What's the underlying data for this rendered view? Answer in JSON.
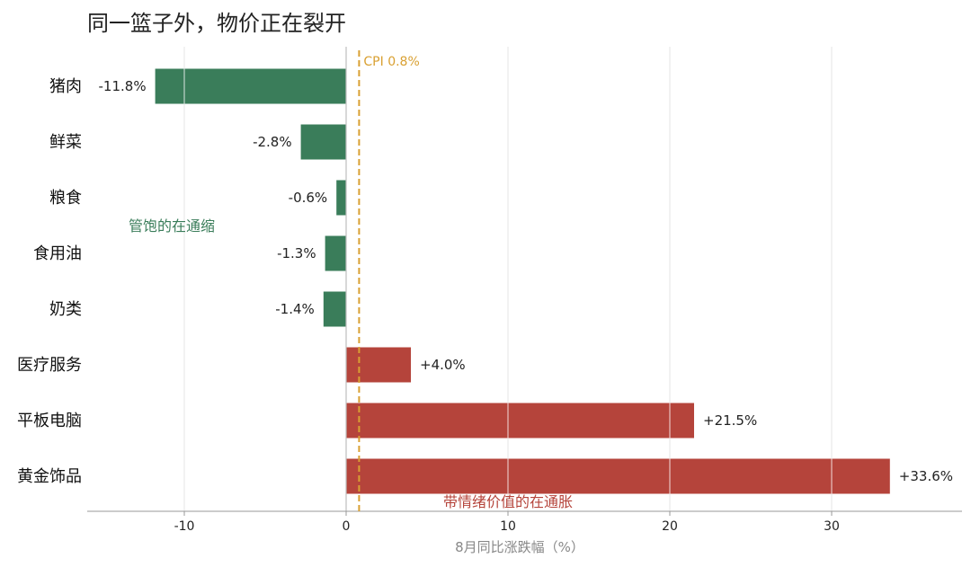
{
  "title": "同一篮子外，物价正在裂开",
  "colors": {
    "negative": "#3a7d5a",
    "positive": "#b5443b",
    "reference": "#d9a032",
    "grid": "#e6e6e6"
  },
  "chart_data": {
    "type": "bar",
    "orientation": "horizontal",
    "title": "同一篮子外，物价正在裂开",
    "xlabel": "8月同比涨跌幅（%）",
    "ylabel": "",
    "xlim": [
      -16,
      38
    ],
    "xticks": [
      -10,
      0,
      10,
      20,
      30
    ],
    "xtick_labels": [
      "-10",
      "0",
      "10",
      "20",
      "30"
    ],
    "grid": "x",
    "categories": [
      "猪肉",
      "鲜菜",
      "粮食",
      "食用油",
      "奶类",
      "医疗服务",
      "平板电脑",
      "黄金饰品"
    ],
    "values": [
      -11.8,
      -2.8,
      -0.6,
      -1.3,
      -1.4,
      4.0,
      21.5,
      33.6
    ],
    "value_labels": [
      "-11.8%",
      "-2.8%",
      "-0.6%",
      "-1.3%",
      "-1.4%",
      "+4.0%",
      "+21.5%",
      "+33.6%"
    ],
    "reference_line": {
      "label": "CPI 0.8%",
      "value": 0.8
    },
    "annotations": [
      {
        "text": "管饱的在通缩",
        "group": "negative"
      },
      {
        "text": "带情绪价值的在通胀",
        "group": "positive"
      }
    ]
  }
}
